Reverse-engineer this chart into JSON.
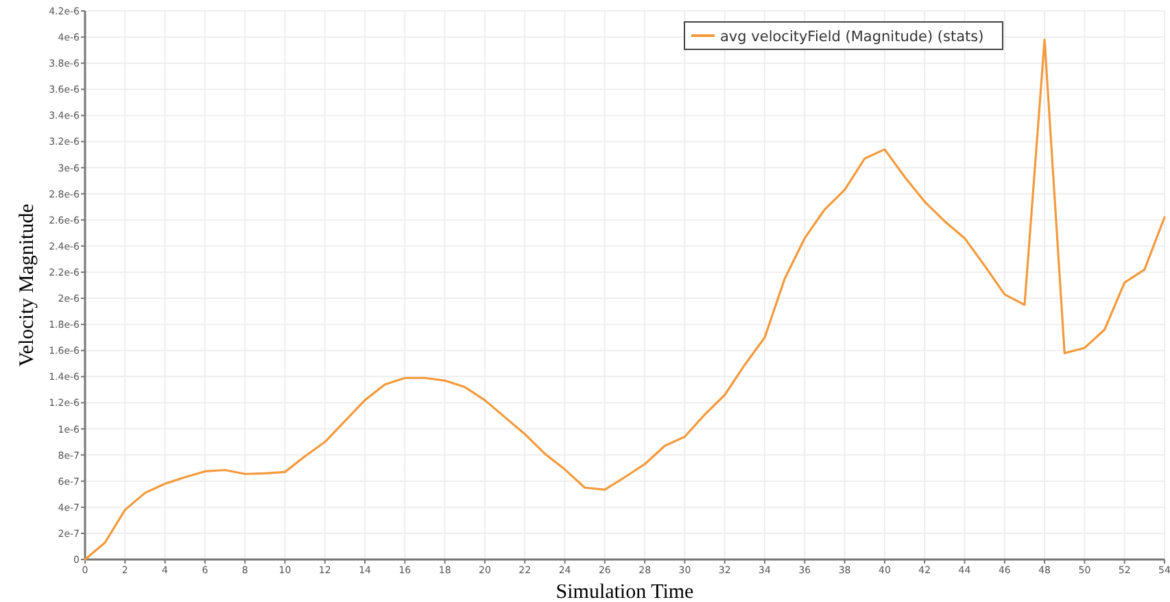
{
  "chart_data": {
    "type": "line",
    "xlabel": "Simulation Time",
    "ylabel": "Velocity Magnitude",
    "x": [
      0,
      1,
      2,
      3,
      4,
      5,
      6,
      7,
      8,
      9,
      10,
      11,
      12,
      13,
      14,
      15,
      16,
      17,
      18,
      19,
      20,
      21,
      22,
      23,
      24,
      25,
      26,
      27,
      28,
      29,
      30,
      31,
      32,
      33,
      34,
      35,
      36,
      37,
      38,
      39,
      40,
      41,
      42,
      43,
      44,
      45,
      46,
      47,
      48,
      49,
      50,
      51,
      52,
      53,
      54
    ],
    "series": [
      {
        "name": "avg velocityField (Magnitude) (stats)",
        "color": "#f39a3c",
        "values": [
          0,
          1.3e-07,
          3.8e-07,
          5.1e-07,
          5.8e-07,
          6.3e-07,
          6.75e-07,
          6.85e-07,
          6.55e-07,
          6.6e-07,
          6.7e-07,
          7.9e-07,
          9e-07,
          1.06e-06,
          1.22e-06,
          1.34e-06,
          1.39e-06,
          1.39e-06,
          1.37e-06,
          1.32e-06,
          1.22e-06,
          1.09e-06,
          9.6e-07,
          8.1e-07,
          6.9e-07,
          5.5e-07,
          5.35e-07,
          6.3e-07,
          7.3e-07,
          8.7e-07,
          9.4e-07,
          1.11e-06,
          1.26e-06,
          1.49e-06,
          1.7e-06,
          2.15e-06,
          2.46e-06,
          2.68e-06,
          2.83e-06,
          3.07e-06,
          3.14e-06,
          2.93e-06,
          2.74e-06,
          2.59e-06,
          2.46e-06,
          2.25e-06,
          2.03e-06,
          1.95e-06,
          3.98e-06,
          1.58e-06,
          1.62e-06,
          1.76e-06,
          2.12e-06,
          2.22e-06,
          2.62e-06
        ]
      }
    ],
    "xlim": [
      0,
      54
    ],
    "xticks": [
      0,
      2,
      4,
      6,
      8,
      10,
      12,
      14,
      16,
      18,
      20,
      22,
      24,
      26,
      28,
      30,
      32,
      34,
      36,
      38,
      40,
      42,
      44,
      46,
      48,
      50,
      52,
      54
    ],
    "ylim": [
      0,
      4.2e-06
    ],
    "yticks": [
      {
        "value": 0,
        "label": "0"
      },
      {
        "value": 2e-07,
        "label": "2e-7"
      },
      {
        "value": 4e-07,
        "label": "4e-7"
      },
      {
        "value": 6e-07,
        "label": "6e-7"
      },
      {
        "value": 8e-07,
        "label": "8e-7"
      },
      {
        "value": 1e-06,
        "label": "1e-6"
      },
      {
        "value": 1.2e-06,
        "label": "1.2e-6"
      },
      {
        "value": 1.4e-06,
        "label": "1.4e-6"
      },
      {
        "value": 1.6e-06,
        "label": "1.6e-6"
      },
      {
        "value": 1.8e-06,
        "label": "1.8e-6"
      },
      {
        "value": 2e-06,
        "label": "2e-6"
      },
      {
        "value": 2.2e-06,
        "label": "2.2e-6"
      },
      {
        "value": 2.4e-06,
        "label": "2.4e-6"
      },
      {
        "value": 2.6e-06,
        "label": "2.6e-6"
      },
      {
        "value": 2.8e-06,
        "label": "2.8e-6"
      },
      {
        "value": 3e-06,
        "label": "3e-6"
      },
      {
        "value": 3.2e-06,
        "label": "3.2e-6"
      },
      {
        "value": 3.4e-06,
        "label": "3.4e-6"
      },
      {
        "value": 3.6e-06,
        "label": "3.6e-6"
      },
      {
        "value": 3.8e-06,
        "label": "3.8e-6"
      },
      {
        "value": 4e-06,
        "label": "4e-6"
      },
      {
        "value": 4.2e-06,
        "label": "4.2e-6"
      }
    ],
    "grid": true,
    "legend": "top right",
    "marker": "none",
    "line_style": "solid"
  }
}
